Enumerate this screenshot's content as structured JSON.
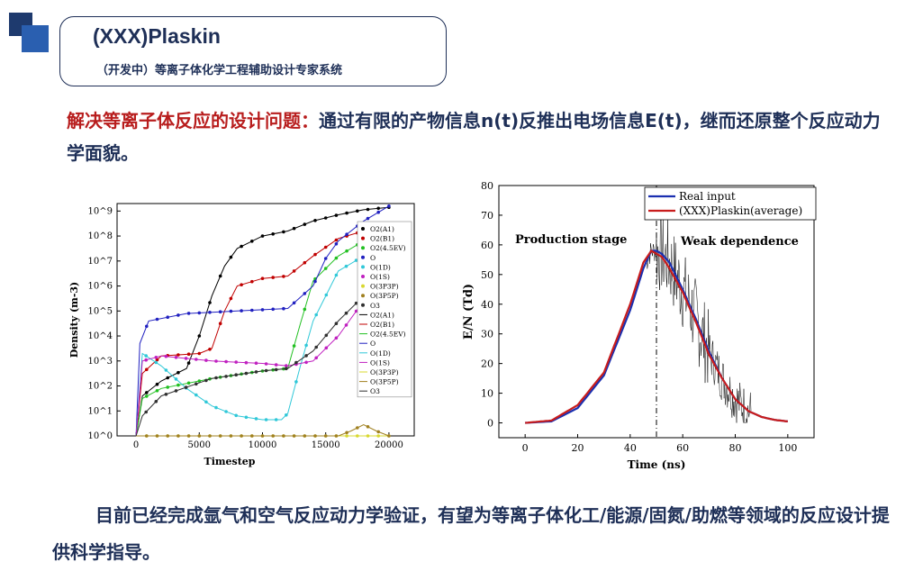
{
  "header": {
    "title": "(XXX)Plaskin",
    "subtitle": "（开发中）等离子体化学工程辅助设计专家系统"
  },
  "intro": {
    "highlight": "解决等离子体反应的设计问题：",
    "text": "通过有限的产物信息n(t)反推出电场信息E(t)，继而还原整个反应动力学面貌。"
  },
  "conclusion": {
    "text": "目前已经完成氩气和空气反应动力学验证，有望为等离子体化工/能源/固氮/助燃等领域的反应设计提供科学指导。"
  },
  "chart_data": [
    {
      "type": "scatter",
      "xlabel": "Timestep",
      "ylabel": "Density (m-3)",
      "xlim": [
        -1500,
        22000
      ],
      "ylog": true,
      "ylim_exponent": [
        0,
        9.3
      ],
      "x_ticks": [
        "0",
        "5000",
        "10000",
        "15000",
        "20000"
      ],
      "y_ticks": [
        "10^0",
        "10^1",
        "10^2",
        "10^3",
        "10^4",
        "10^5",
        "10^6",
        "10^7",
        "10^8",
        "10^9"
      ],
      "legend_position": "right",
      "legend": [
        "O2(A1)",
        "O2(B1)",
        "O2(4.5EV)",
        "O",
        "O(1D)",
        "O(1S)",
        "O(3P3P)",
        "O(3P5P)",
        "O3",
        "O2(A1)",
        "O2(B1)",
        "O2(4.5EV)",
        "O",
        "O(1D)",
        "O(1S)",
        "O(3P3P)",
        "O(3P5P)",
        "O3"
      ],
      "series": [
        {
          "name": "O2(A1)",
          "color": "#000000",
          "x": [
            0,
            500,
            2000,
            4000,
            5000,
            6000,
            7000,
            8000,
            10000,
            12000,
            14000,
            16000,
            18000,
            20000
          ],
          "log10_y": [
            0,
            1.6,
            2.2,
            2.7,
            4.0,
            5.6,
            6.8,
            7.5,
            8.0,
            8.2,
            8.6,
            8.85,
            9.05,
            9.15
          ]
        },
        {
          "name": "O2(B1)",
          "color": "#c00000",
          "x": [
            0,
            500,
            2000,
            5000,
            6000,
            7000,
            8000,
            10000,
            12000,
            14000,
            16000,
            18000,
            20000
          ],
          "log10_y": [
            0,
            2.5,
            3.2,
            3.3,
            3.5,
            5.0,
            6.0,
            6.3,
            6.4,
            7.2,
            7.9,
            8.2,
            8.4
          ]
        },
        {
          "name": "O2(4.5EV)",
          "color": "#22c022",
          "x": [
            0,
            500,
            2000,
            6000,
            10000,
            12000,
            13000,
            14000,
            16000,
            18000,
            20000
          ],
          "log10_y": [
            0,
            1.5,
            1.9,
            2.3,
            2.6,
            2.7,
            4.5,
            6.2,
            7.2,
            7.8,
            8.0
          ]
        },
        {
          "name": "O",
          "color": "#2020c0",
          "x": [
            0,
            300,
            1000,
            4000,
            8000,
            12000,
            14000,
            15000,
            16000,
            18000,
            20000
          ],
          "log10_y": [
            0,
            3.7,
            4.6,
            4.9,
            5.0,
            5.1,
            6.0,
            7.1,
            7.8,
            8.6,
            9.2
          ]
        },
        {
          "name": "O(1D)",
          "color": "#30c8d8",
          "x": [
            0,
            500,
            2000,
            4000,
            6000,
            8000,
            10000,
            11500,
            12000,
            13000,
            14000,
            16000,
            18000,
            19000
          ],
          "log10_y": [
            0,
            3.3,
            2.8,
            1.9,
            1.2,
            0.8,
            0.65,
            0.65,
            0.9,
            2.8,
            4.6,
            6.6,
            7.2,
            7.3
          ]
        },
        {
          "name": "O(1S)",
          "color": "#c020c0",
          "x": [
            0,
            500,
            2000,
            6000,
            10000,
            12000,
            14000,
            16000,
            18000,
            19000
          ],
          "log10_y": [
            0,
            3.0,
            3.2,
            3.0,
            2.9,
            2.8,
            3.0,
            4.0,
            5.4,
            5.8
          ]
        },
        {
          "name": "O(3P3P)",
          "color": "#d8d830",
          "x": [
            0,
            5000,
            10000,
            15000,
            20000
          ],
          "log10_y": [
            0,
            0,
            0,
            0,
            0
          ]
        },
        {
          "name": "O(3P5P)",
          "color": "#a08020",
          "x": [
            0,
            16000,
            17000,
            18000,
            19000,
            20000
          ],
          "log10_y": [
            0,
            0,
            0.2,
            0.45,
            0.2,
            0
          ]
        },
        {
          "name": "O3",
          "color": "#303030",
          "x": [
            0,
            500,
            2000,
            6000,
            10000,
            12000,
            14000,
            16000,
            18000,
            19000
          ],
          "log10_y": [
            0,
            0.8,
            1.6,
            2.3,
            2.6,
            2.7,
            3.4,
            4.6,
            5.6,
            5.9
          ]
        }
      ]
    },
    {
      "type": "line",
      "xlabel": "Time (ns)",
      "ylabel": "E/N (Td)",
      "xlim": [
        -10,
        110
      ],
      "ylim": [
        -5,
        80
      ],
      "x_ticks": [
        "0",
        "20",
        "40",
        "60",
        "80",
        "100"
      ],
      "y_ticks": [
        "0",
        "10",
        "20",
        "30",
        "40",
        "50",
        "60",
        "70",
        "80"
      ],
      "legend_position": "top-right",
      "annotations": [
        "Production stage",
        "Weak dependence"
      ],
      "vline_x": 50,
      "series": [
        {
          "name": "Real input",
          "color": "#1a2fb0",
          "x": [
            0,
            10,
            20,
            30,
            40,
            45,
            48,
            50,
            52,
            55,
            60,
            65,
            70,
            75,
            80,
            85,
            90,
            95,
            100
          ],
          "y": [
            0,
            0.5,
            5,
            16,
            38,
            52,
            58,
            58,
            57,
            54,
            45,
            35,
            24,
            15,
            8,
            4,
            2,
            1,
            0.5
          ]
        },
        {
          "name": "(XXX)Plaskin(average)",
          "color": "#c81c1c",
          "x": [
            0,
            10,
            20,
            30,
            40,
            45,
            48,
            50,
            52,
            55,
            60,
            65,
            70,
            75,
            80,
            85,
            90,
            95,
            100
          ],
          "y": [
            0,
            0.8,
            6,
            17,
            40,
            54,
            58,
            57,
            56,
            52,
            44,
            34,
            23,
            15,
            8,
            4,
            2,
            1,
            0.5
          ]
        }
      ]
    }
  ]
}
